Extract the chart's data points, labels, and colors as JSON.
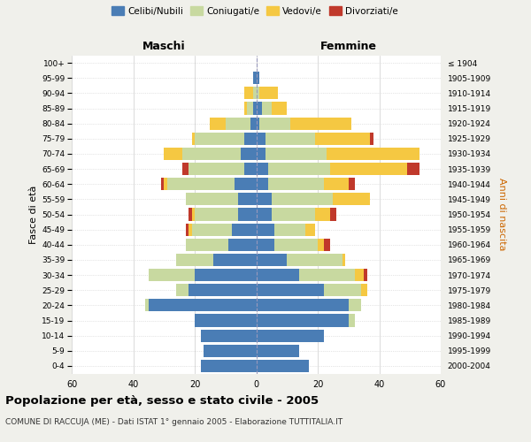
{
  "age_groups": [
    "0-4",
    "5-9",
    "10-14",
    "15-19",
    "20-24",
    "25-29",
    "30-34",
    "35-39",
    "40-44",
    "45-49",
    "50-54",
    "55-59",
    "60-64",
    "65-69",
    "70-74",
    "75-79",
    "80-84",
    "85-89",
    "90-94",
    "95-99",
    "100+"
  ],
  "birth_years": [
    "2000-2004",
    "1995-1999",
    "1990-1994",
    "1985-1989",
    "1980-1984",
    "1975-1979",
    "1970-1974",
    "1965-1969",
    "1960-1964",
    "1955-1959",
    "1950-1954",
    "1945-1949",
    "1940-1944",
    "1935-1939",
    "1930-1934",
    "1925-1929",
    "1920-1924",
    "1915-1919",
    "1910-1914",
    "1905-1909",
    "≤ 1904"
  ],
  "maschi": {
    "celibi": [
      18,
      17,
      18,
      20,
      35,
      22,
      20,
      14,
      9,
      8,
      6,
      6,
      7,
      4,
      5,
      4,
      2,
      1,
      0,
      1,
      0
    ],
    "coniugati": [
      0,
      0,
      0,
      0,
      1,
      4,
      15,
      12,
      14,
      13,
      14,
      17,
      22,
      18,
      19,
      16,
      8,
      2,
      1,
      0,
      0
    ],
    "vedovi": [
      0,
      0,
      0,
      0,
      0,
      0,
      0,
      0,
      0,
      1,
      1,
      0,
      1,
      0,
      6,
      1,
      5,
      1,
      3,
      0,
      0
    ],
    "divorziati": [
      0,
      0,
      0,
      0,
      0,
      0,
      0,
      0,
      0,
      1,
      1,
      0,
      1,
      2,
      0,
      0,
      0,
      0,
      0,
      0,
      0
    ]
  },
  "femmine": {
    "nubili": [
      17,
      14,
      22,
      30,
      30,
      22,
      14,
      10,
      6,
      6,
      5,
      5,
      4,
      4,
      3,
      3,
      1,
      2,
      0,
      1,
      0
    ],
    "coniugate": [
      0,
      0,
      0,
      2,
      4,
      12,
      18,
      18,
      14,
      10,
      14,
      20,
      18,
      20,
      20,
      16,
      10,
      3,
      1,
      0,
      0
    ],
    "vedove": [
      0,
      0,
      0,
      0,
      0,
      2,
      3,
      1,
      2,
      3,
      5,
      12,
      8,
      25,
      30,
      18,
      20,
      5,
      6,
      0,
      0
    ],
    "divorziate": [
      0,
      0,
      0,
      0,
      0,
      0,
      1,
      0,
      2,
      0,
      2,
      0,
      2,
      4,
      0,
      1,
      0,
      0,
      0,
      0,
      0
    ]
  },
  "colors": {
    "celibi_nubili": "#4a7db5",
    "coniugati": "#c8d9a0",
    "vedovi": "#f5c842",
    "divorziati": "#c0392b"
  },
  "xlim": 60,
  "title": "Popolazione per età, sesso e stato civile - 2005",
  "subtitle": "COMUNE DI RACCUJA (ME) - Dati ISTAT 1° gennaio 2005 - Elaborazione TUTTITALIA.IT",
  "ylabel_left": "Fasce di età",
  "ylabel_right": "Anni di nascita",
  "xlabel_maschi": "Maschi",
  "xlabel_femmine": "Femmine",
  "bg_color": "#f0f0eb",
  "plot_bg": "#ffffff",
  "grid_color": "#cccccc",
  "center_line_color": "#9999bb"
}
